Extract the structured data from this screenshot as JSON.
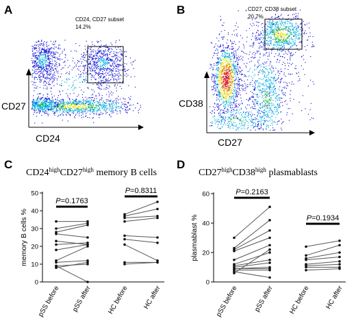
{
  "panels": {
    "A": {
      "letter": "A",
      "gate_name": "CD24, CD27 subset",
      "gate_pct": "14.2%",
      "ylabel": "CD27",
      "xlabel": "CD24"
    },
    "B": {
      "letter": "B",
      "gate_name": "CD27, CD38 subset",
      "gate_pct": "20.7%",
      "ylabel": "CD38",
      "xlabel": "CD27"
    },
    "C": {
      "letter": "C",
      "title_parts": [
        "CD24",
        "high",
        "CD27",
        "high",
        " memory B cells"
      ]
    },
    "D": {
      "letter": "D",
      "title_parts": [
        "CD27",
        "high",
        "CD38",
        "high",
        " plasmablasts"
      ]
    }
  },
  "colors": {
    "dot_density": [
      "#1a1ad9",
      "#00b0e0",
      "#1fbf4f",
      "#e8e020",
      "#f08010",
      "#e81010"
    ],
    "line": "#555555",
    "marker": "#111111"
  },
  "chart_data": [
    {
      "type": "scatter",
      "panel": "A",
      "kind": "flow-cytometry-density",
      "xlabel": "CD24",
      "ylabel": "CD27",
      "gate_label": "CD24, CD27 subset",
      "gate_value_percent": 14.2
    },
    {
      "type": "scatter",
      "panel": "B",
      "kind": "flow-cytometry-density",
      "xlabel": "CD27",
      "ylabel": "CD38",
      "gate_label": "CD27, CD38 subset",
      "gate_value_percent": 20.7
    },
    {
      "type": "line",
      "panel": "C",
      "kind": "paired-before-after",
      "ylabel": "memory B cells %",
      "ylim": [
        0,
        50
      ],
      "yticks": [
        "0",
        "10",
        "20",
        "30",
        "40",
        "50"
      ],
      "categories": [
        "pSS before",
        "pSS after",
        "HC before",
        "HC after"
      ],
      "p_values": [
        {
          "label": "P=0.1763",
          "p_italic": "P",
          "text": "=0.1763",
          "between": [
            0,
            1
          ]
        },
        {
          "label": "P=0.8311",
          "p_italic": "P",
          "text": "=0.8311",
          "between": [
            2,
            3
          ]
        }
      ],
      "groups": [
        {
          "name": "pSS",
          "before": [
            34,
            30,
            28,
            27,
            23,
            21,
            18,
            12,
            11,
            9,
            8,
            9
          ],
          "after": [
            34,
            33,
            32,
            25,
            21,
            22,
            21,
            20,
            12,
            10,
            11,
            0
          ]
        },
        {
          "name": "HC",
          "before": [
            38,
            37,
            36,
            34,
            26,
            24,
            21,
            11,
            10
          ],
          "after": [
            45,
            41,
            37,
            36,
            25,
            22,
            12,
            11,
            11
          ]
        }
      ]
    },
    {
      "type": "line",
      "panel": "D",
      "kind": "paired-before-after",
      "ylabel": "plasmablast %",
      "ylim": [
        0,
        60
      ],
      "yticks": [
        "0",
        "20",
        "40",
        "60"
      ],
      "categories": [
        "pSS before",
        "pSS after",
        "HC before",
        "HC after"
      ],
      "p_values": [
        {
          "label": "P=0.2163",
          "p_italic": "P",
          "text": "=0.2163",
          "between": [
            0,
            1
          ]
        },
        {
          "label": "P=0.1934",
          "p_italic": "P",
          "text": "=0.1934",
          "between": [
            2,
            3
          ]
        }
      ],
      "groups": [
        {
          "name": "pSS",
          "before": [
            30,
            23,
            22,
            21,
            15,
            12,
            11,
            10,
            9,
            9,
            8,
            7,
            6
          ],
          "after": [
            51,
            42,
            35,
            30,
            25,
            20,
            15,
            13,
            10,
            9,
            8,
            3,
            22
          ]
        },
        {
          "name": "HC",
          "before": [
            24,
            18,
            16,
            15,
            12,
            11,
            10,
            8
          ],
          "after": [
            28,
            25,
            20,
            17,
            14,
            12,
            10,
            9
          ]
        }
      ]
    }
  ]
}
